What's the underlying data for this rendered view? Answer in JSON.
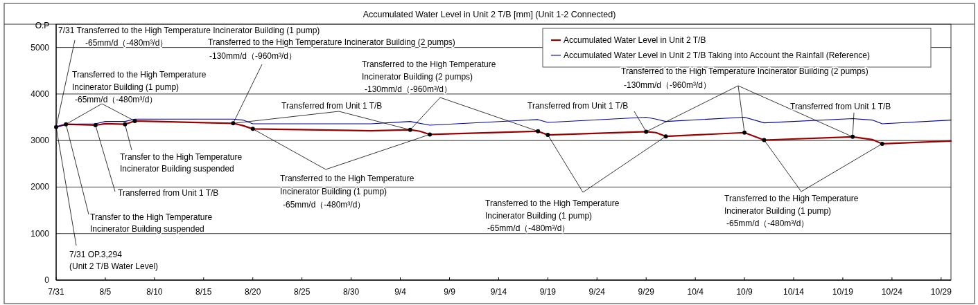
{
  "chart_data": {
    "type": "line",
    "title": "Accumulated Water Level in Unit 2 T/B [mm] (Unit 1-2 Connected)",
    "ylabel": "O.P",
    "xlim": [
      "--07-31",
      "--10-30"
    ],
    "xticks": [
      {
        "value": "--07-31",
        "label": "7/31"
      },
      {
        "value": "--08-05",
        "label": "8/5"
      },
      {
        "value": "--08-10",
        "label": "8/10"
      },
      {
        "value": "--08-15",
        "label": "8/15"
      },
      {
        "value": "--08-20",
        "label": "8/20"
      },
      {
        "value": "--08-25",
        "label": "8/25"
      },
      {
        "value": "--08-30",
        "label": "8/30"
      },
      {
        "value": "--09-04",
        "label": "9/4"
      },
      {
        "value": "--09-09",
        "label": "9/9"
      },
      {
        "value": "--09-14",
        "label": "9/14"
      },
      {
        "value": "--09-19",
        "label": "9/19"
      },
      {
        "value": "--09-24",
        "label": "9/24"
      },
      {
        "value": "--09-29",
        "label": "9/29"
      },
      {
        "value": "--10-04",
        "label": "10/4"
      },
      {
        "value": "--10-09",
        "label": "10/9"
      },
      {
        "value": "--10-14",
        "label": "10/14"
      },
      {
        "value": "--10-19",
        "label": "10/19"
      },
      {
        "value": "--10-24",
        "label": "10/24"
      },
      {
        "value": "--10-29",
        "label": "10/29"
      }
    ],
    "ylim": [
      0,
      5500
    ],
    "yticks": [
      0,
      1000,
      2000,
      3000,
      4000,
      5000
    ],
    "grid": "y",
    "legend": "top right",
    "series": [
      {
        "name": "Accumulated Water Level in Unit 2 T/B",
        "color": "#990000",
        "x": [
          "--07-31",
          "--08-01",
          "--08-04",
          "--08-05",
          "--08-07",
          "--08-08",
          "--08-18",
          "--08-19",
          "--08-20",
          "--09-01",
          "--09-05",
          "--09-06",
          "--09-07",
          "--09-18",
          "--09-19",
          "--09-29",
          "--09-30",
          "--10-01",
          "--10-09",
          "--10-11",
          "--10-20",
          "--10-22",
          "--10-23",
          "--10-30"
        ],
        "values": [
          3290,
          3350,
          3330,
          3360,
          3350,
          3420,
          3370,
          3320,
          3250,
          3210,
          3230,
          3200,
          3130,
          3200,
          3120,
          3190,
          3170,
          3090,
          3170,
          3010,
          3080,
          3020,
          2930,
          2990
        ]
      },
      {
        "name": "Accumulated Water Level in Unit 2 T/B Taking into Account the Rainfall (Reference)",
        "color": "#000099",
        "x": [
          "--07-31",
          "--08-01",
          "--08-04",
          "--08-05",
          "--08-07",
          "--08-08",
          "--08-18",
          "--08-19",
          "--08-20",
          "--09-01",
          "--09-05",
          "--09-07",
          "--09-18",
          "--09-19",
          "--09-29",
          "--09-30",
          "--10-01",
          "--10-09",
          "--10-11",
          "--10-20",
          "--10-22",
          "--10-23",
          "--10-30"
        ],
        "values": [
          3290,
          3350,
          3360,
          3410,
          3410,
          3460,
          3460,
          3440,
          3360,
          3360,
          3410,
          3330,
          3450,
          3390,
          3500,
          3460,
          3410,
          3500,
          3380,
          3470,
          3440,
          3360,
          3440
        ]
      },
      {
        "type": "scatter",
        "color": "#000000",
        "x": [
          "--07-31",
          "--08-01",
          "--08-04",
          "--08-07",
          "--08-08",
          "--08-18",
          "--08-20",
          "--09-05",
          "--09-07",
          "--09-18",
          "--09-19",
          "--09-29",
          "--10-01",
          "--10-09",
          "--10-11",
          "--10-20",
          "--10-23"
        ],
        "values": [
          3290,
          3350,
          3330,
          3350,
          3420,
          3370,
          3250,
          3230,
          3130,
          3200,
          3120,
          3190,
          3090,
          3170,
          3010,
          3080,
          2930
        ]
      }
    ],
    "annotations": [
      {
        "text": "7/31  Transferred to the High Temperature Incinerator Building (1 pump)\n-65mm/d（-480m³/d）",
        "x": "--07-31",
        "y": 3290
      },
      {
        "text": "Transferred to the High Temperature Incinerator Building (2 pumps)\n-130mm/d（-960m³/d）",
        "x": "--08-18",
        "y": 3370
      },
      {
        "text": "Transferred to the High Temperature\nIncinerator Building (1 pump)\n-65mm/d（-480m³/d）",
        "x": "--08-01",
        "y": 3350
      },
      {
        "text": "Transferred from Unit 1 T/B",
        "x": "--08-18",
        "y": 3370
      },
      {
        "text": "Transferred to the High Temperature\nIncinerator Building (2 pumps)\n-130mm/d（-960m³/d）",
        "x": "--09-05",
        "y": 3230
      },
      {
        "text": "Transferred from Unit 1 T/B",
        "x": "--09-29",
        "y": 3190
      },
      {
        "text": "Transferred to the High Temperature Incinerator Building (2 pumps)\n-130mm/d（-960m³/d）",
        "x": "--09-29",
        "y": 3190
      },
      {
        "text": "Transferred from Unit 1 T/B",
        "x": "--10-20",
        "y": 3080
      },
      {
        "text": "Transfer to the High Temperature\nIncinerator Building suspended",
        "x": "--08-07",
        "y": 3350
      },
      {
        "text": "Transferred from Unit 1 T/B",
        "x": "--08-04",
        "y": 3330
      },
      {
        "text": "Transfer to the High Temperature\nIncinerator Building suspended",
        "x": "--08-01",
        "y": 3350
      },
      {
        "text": "7/31  OP.3,294\n(Unit 2 T/B Water Level)",
        "x": "--07-31",
        "y": 3294
      },
      {
        "text": "Transferred to the High Temperature\nIncinerator Building (1 pump)\n-65mm/d（-480m³/d）",
        "x": "--08-20",
        "y": 3250
      },
      {
        "text": "Transferred to the High Temperature\nIncinerator Building (1 pump)\n-65mm/d（-480m³/d）",
        "x": "--09-19",
        "y": 3120
      },
      {
        "text": "Transferred to the High Temperature\nIncinerator Building (1 pump)\n-65mm/d（-480m³/d）",
        "x": "--10-11",
        "y": 3010
      }
    ]
  }
}
